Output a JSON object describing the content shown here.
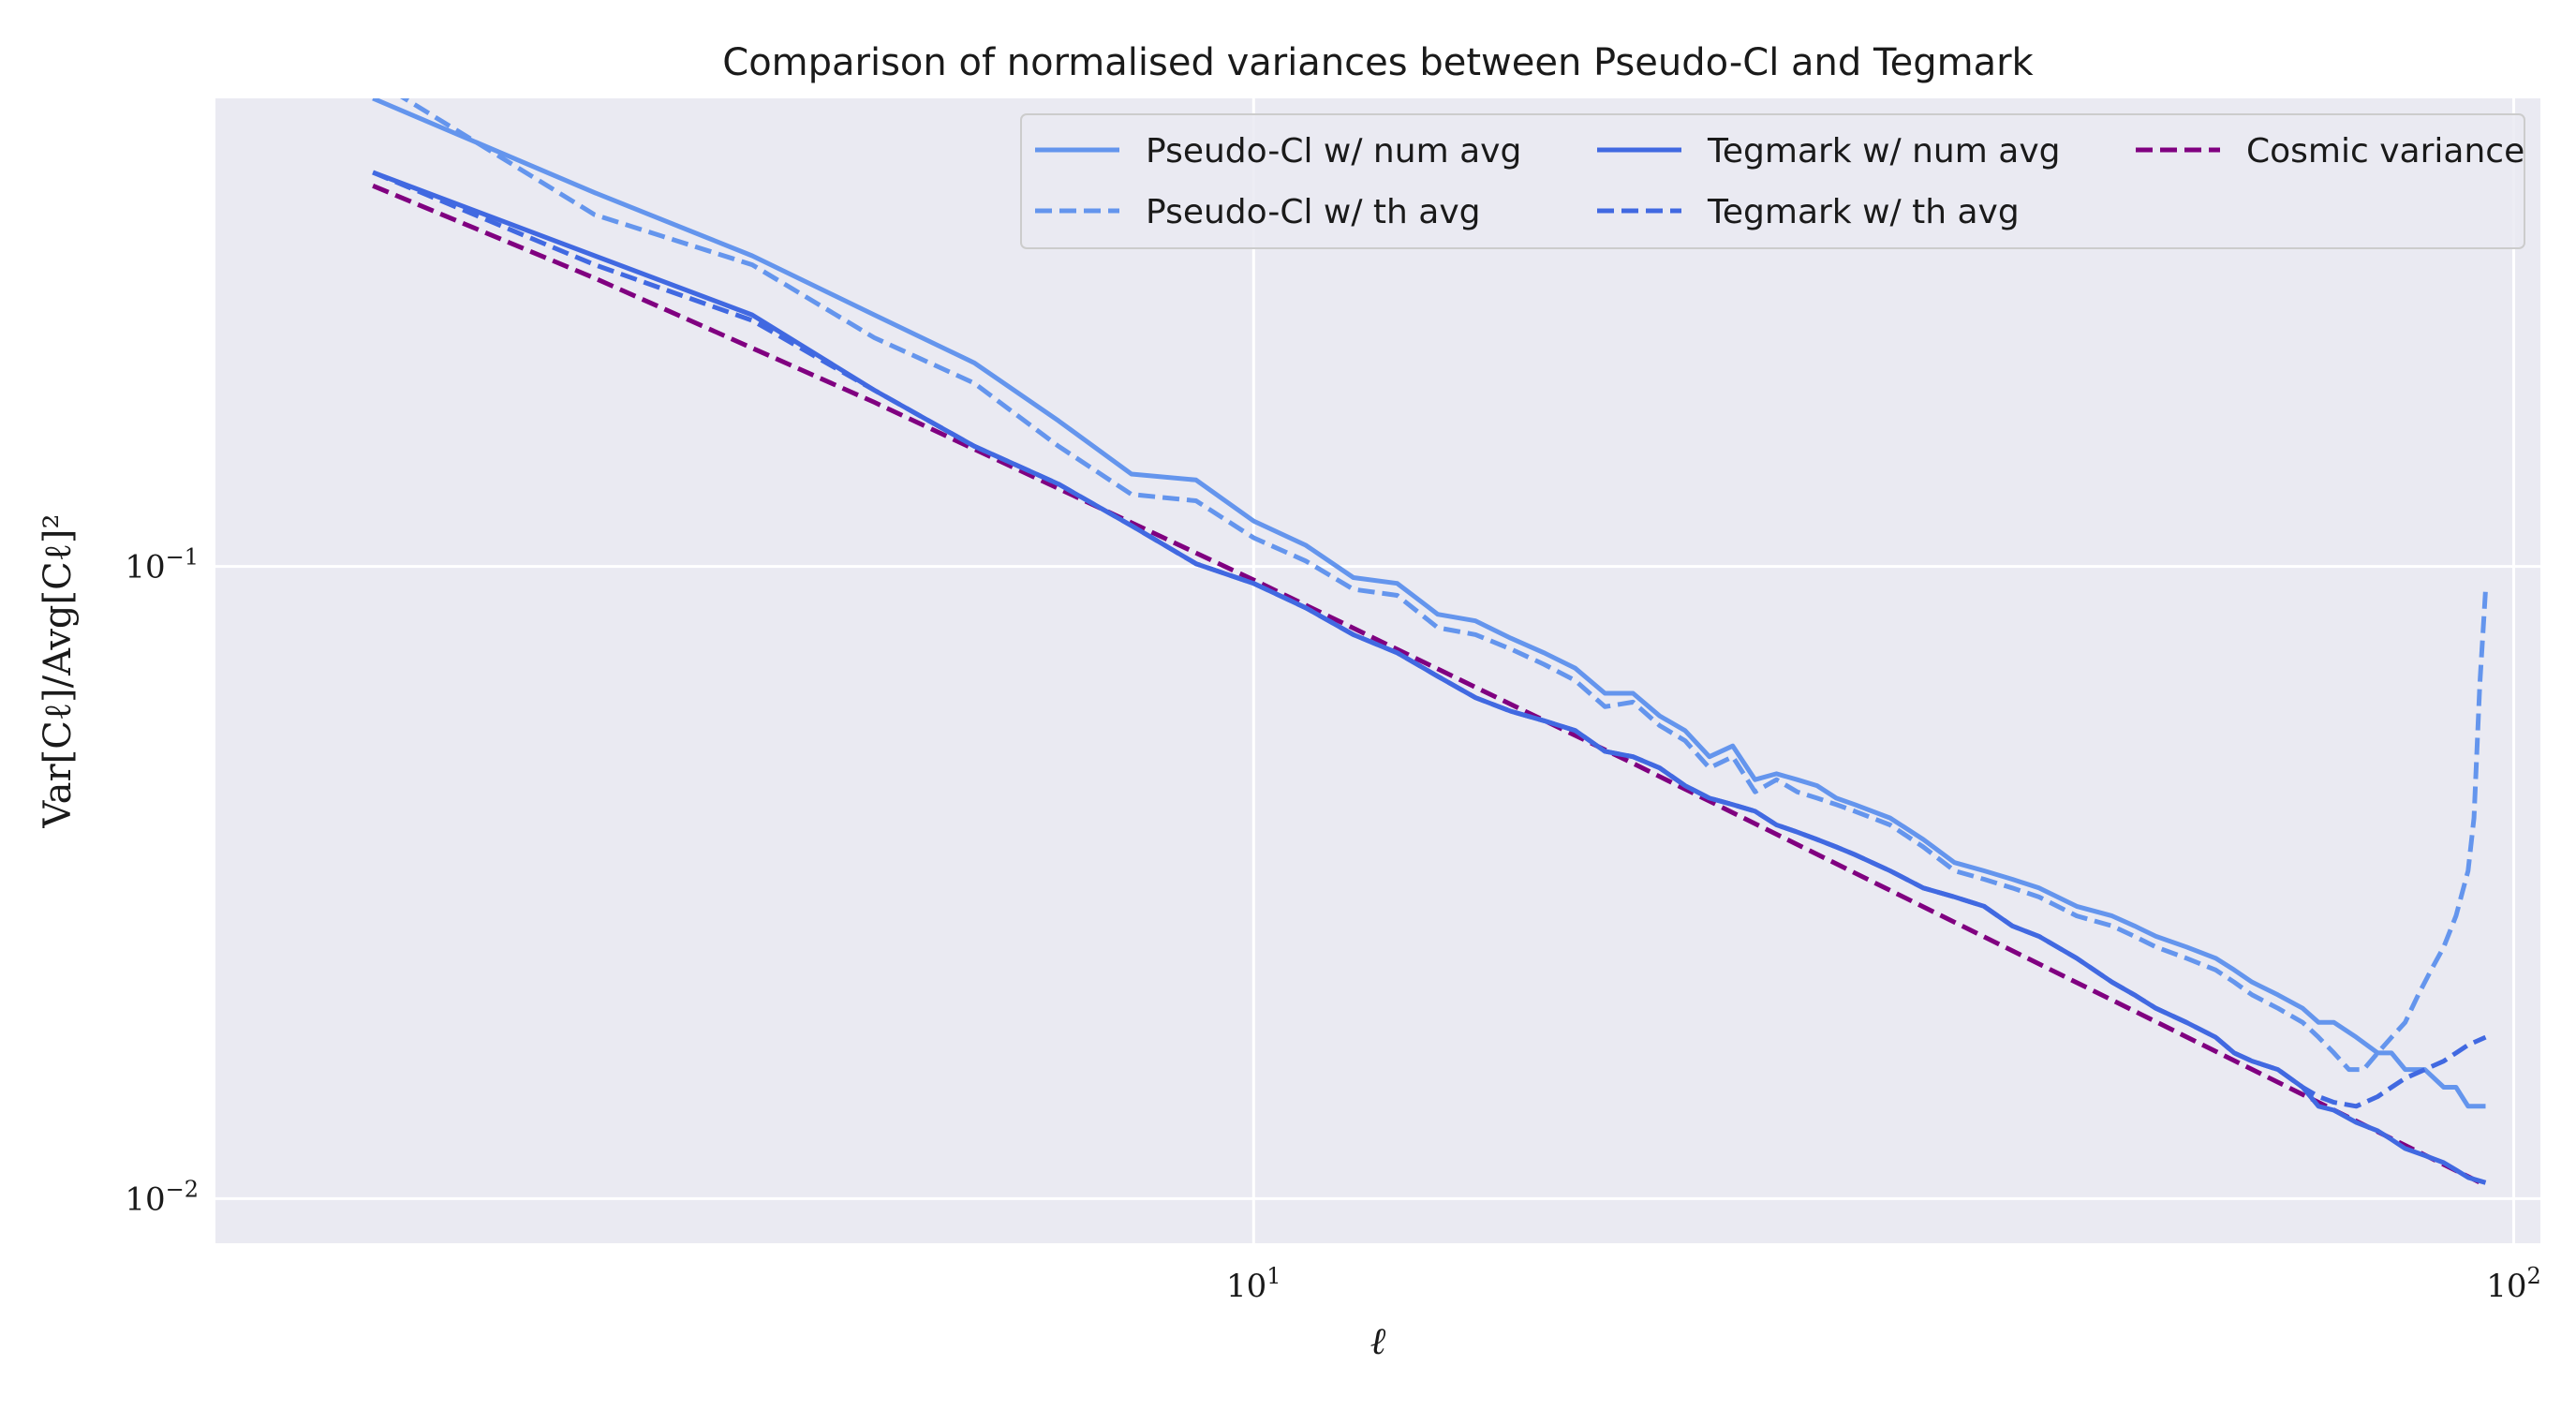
{
  "chart_data": {
    "type": "line",
    "title": "Comparison of normalised variances between Pseudo-Cl and Tegmark",
    "xlabel": "ℓ",
    "ylabel": "Var[Cℓ]/Avg[Cℓ]²",
    "xscale": "log",
    "yscale": "log",
    "xlim": [
      1.5,
      105
    ],
    "ylim": [
      0.0085,
      0.55
    ],
    "grid": true,
    "legend_position": "top-right",
    "legend_columns": 3,
    "x_ticks": [
      {
        "value": 10,
        "base": "10",
        "exp": "1"
      },
      {
        "value": 100,
        "base": "10",
        "exp": "2"
      }
    ],
    "y_ticks": [
      {
        "value": 0.01,
        "base": "10",
        "exp": "−2"
      },
      {
        "value": 0.1,
        "base": "10",
        "exp": "−1"
      }
    ],
    "colors": {
      "background": "#eaeaf2",
      "grid": "#ffffff",
      "pseudo_cl": "#6495ed",
      "tegmark": "#4169e1",
      "cosmic": "#800080"
    },
    "series": [
      {
        "name": "Pseudo-Cl w/ num avg",
        "color": "#6495ed",
        "dash": "solid",
        "x": [
          2,
          3,
          4,
          5,
          6,
          7,
          8,
          9,
          10,
          11,
          12,
          13,
          14,
          15,
          16,
          17,
          18,
          19,
          20,
          21,
          22,
          23,
          24,
          25,
          26,
          27,
          28,
          29,
          30,
          32,
          34,
          36,
          38,
          40,
          42,
          45,
          48,
          50,
          52,
          55,
          58,
          60,
          62,
          65,
          68,
          70,
          72,
          75,
          78,
          80,
          82,
          85,
          88,
          90,
          92,
          95
        ],
        "y": [
          0.55,
          0.39,
          0.31,
          0.25,
          0.21,
          0.17,
          0.14,
          0.137,
          0.118,
          0.108,
          0.096,
          0.094,
          0.084,
          0.082,
          0.077,
          0.073,
          0.069,
          0.063,
          0.063,
          0.058,
          0.055,
          0.05,
          0.052,
          0.046,
          0.047,
          0.046,
          0.045,
          0.043,
          0.042,
          0.04,
          0.037,
          0.034,
          0.033,
          0.032,
          0.031,
          0.029,
          0.028,
          0.027,
          0.026,
          0.025,
          0.024,
          0.023,
          0.022,
          0.021,
          0.02,
          0.019,
          0.019,
          0.018,
          0.017,
          0.017,
          0.016,
          0.016,
          0.015,
          0.015,
          0.014,
          0.014
        ]
      },
      {
        "name": "Pseudo-Cl w/ th avg",
        "color": "#6495ed",
        "dash": "dashed",
        "x": [
          2,
          3,
          4,
          5,
          6,
          7,
          8,
          9,
          10,
          11,
          12,
          13,
          14,
          15,
          16,
          17,
          18,
          19,
          20,
          21,
          22,
          23,
          24,
          25,
          26,
          27,
          28,
          29,
          30,
          32,
          34,
          36,
          38,
          40,
          42,
          45,
          48,
          50,
          52,
          55,
          58,
          60,
          62,
          65,
          68,
          70,
          72,
          74,
          76,
          78,
          80,
          82,
          84,
          86,
          88,
          90,
          92,
          93,
          94,
          95
        ],
        "y": [
          0.59,
          0.36,
          0.3,
          0.23,
          0.195,
          0.155,
          0.13,
          0.127,
          0.111,
          0.102,
          0.092,
          0.09,
          0.08,
          0.078,
          0.074,
          0.07,
          0.066,
          0.06,
          0.061,
          0.056,
          0.053,
          0.048,
          0.05,
          0.044,
          0.046,
          0.044,
          0.043,
          0.042,
          0.041,
          0.039,
          0.036,
          0.033,
          0.032,
          0.031,
          0.03,
          0.028,
          0.027,
          0.026,
          0.025,
          0.024,
          0.023,
          0.022,
          0.021,
          0.02,
          0.019,
          0.018,
          0.017,
          0.016,
          0.016,
          0.017,
          0.018,
          0.019,
          0.021,
          0.023,
          0.025,
          0.028,
          0.033,
          0.04,
          0.065,
          0.092
        ]
      },
      {
        "name": "Tegmark w/ num avg",
        "color": "#4169e1",
        "dash": "solid",
        "x": [
          2,
          3,
          4,
          5,
          6,
          7,
          8,
          9,
          10,
          11,
          12,
          13,
          14,
          15,
          16,
          17,
          18,
          19,
          20,
          21,
          22,
          23,
          24,
          25,
          26,
          27,
          28,
          29,
          30,
          32,
          34,
          36,
          38,
          40,
          42,
          45,
          48,
          50,
          52,
          55,
          58,
          60,
          62,
          65,
          68,
          70,
          72,
          75,
          78,
          80,
          82,
          85,
          88,
          90,
          92,
          95
        ],
        "y": [
          0.42,
          0.31,
          0.25,
          0.19,
          0.155,
          0.135,
          0.116,
          0.101,
          0.094,
          0.086,
          0.078,
          0.073,
          0.067,
          0.062,
          0.059,
          0.057,
          0.055,
          0.051,
          0.05,
          0.048,
          0.045,
          0.043,
          0.042,
          0.041,
          0.039,
          0.038,
          0.037,
          0.036,
          0.035,
          0.033,
          0.031,
          0.03,
          0.029,
          0.027,
          0.026,
          0.024,
          0.022,
          0.021,
          0.02,
          0.019,
          0.018,
          0.017,
          0.0165,
          0.016,
          0.015,
          0.014,
          0.0138,
          0.0132,
          0.0128,
          0.0124,
          0.012,
          0.0117,
          0.0114,
          0.0111,
          0.0108,
          0.0106
        ]
      },
      {
        "name": "Tegmark w/ th avg",
        "color": "#4169e1",
        "dash": "dashed",
        "x": [
          2,
          3,
          4,
          5,
          6,
          7,
          8,
          9,
          10,
          11,
          12,
          13,
          14,
          15,
          16,
          17,
          18,
          19,
          20,
          21,
          22,
          23,
          24,
          25,
          26,
          27,
          28,
          29,
          30,
          32,
          34,
          36,
          38,
          40,
          42,
          45,
          48,
          50,
          52,
          55,
          58,
          60,
          62,
          65,
          68,
          70,
          72,
          75,
          78,
          80,
          82,
          85,
          88,
          90,
          92,
          95
        ],
        "y": [
          0.42,
          0.3,
          0.245,
          0.19,
          0.155,
          0.135,
          0.116,
          0.101,
          0.094,
          0.086,
          0.078,
          0.073,
          0.067,
          0.062,
          0.059,
          0.057,
          0.055,
          0.051,
          0.05,
          0.048,
          0.045,
          0.043,
          0.042,
          0.041,
          0.039,
          0.038,
          0.037,
          0.036,
          0.035,
          0.033,
          0.031,
          0.03,
          0.029,
          0.027,
          0.026,
          0.024,
          0.022,
          0.021,
          0.02,
          0.019,
          0.018,
          0.017,
          0.0165,
          0.016,
          0.015,
          0.0145,
          0.0142,
          0.014,
          0.0145,
          0.015,
          0.0155,
          0.016,
          0.0165,
          0.017,
          0.0175,
          0.018
        ]
      },
      {
        "name": "Cosmic variance",
        "color": "#800080",
        "dash": "dashed",
        "x": [
          2,
          3,
          5,
          10,
          20,
          50,
          95
        ],
        "y": [
          0.4,
          0.2857,
          0.1818,
          0.0952,
          0.0488,
          0.0198,
          0.0105
        ]
      }
    ]
  }
}
